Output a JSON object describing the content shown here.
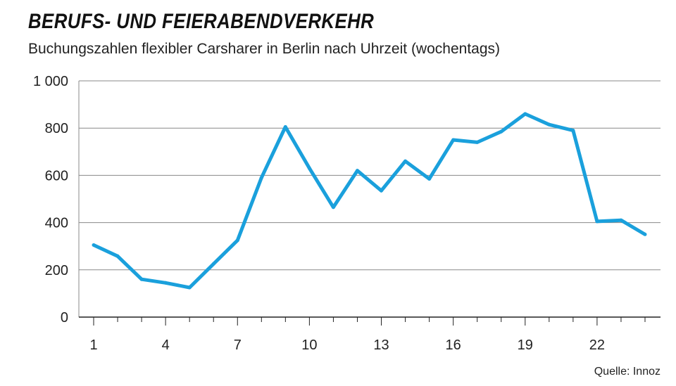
{
  "title": "BERUFS- UND FEIERABENDVERKEHR",
  "subtitle": "Buchungszahlen flexibler Carsharer in Berlin nach Uhrzeit (wochentags)",
  "source": "Quelle: Innoz",
  "colors": {
    "line": "#1aa0dc",
    "grid": "#888888",
    "axis": "#222222"
  },
  "chart_data": {
    "type": "line",
    "title": "BERUFS- UND FEIERABENDVERKEHR",
    "subtitle": "Buchungszahlen flexibler Carsharer in Berlin nach Uhrzeit (wochentags)",
    "x": [
      1,
      2,
      3,
      4,
      5,
      6,
      7,
      8,
      9,
      10,
      11,
      12,
      13,
      14,
      15,
      16,
      17,
      18,
      19,
      20,
      21,
      22,
      23,
      24
    ],
    "series": [
      {
        "values": [
          305,
          258,
          160,
          145,
          125,
          225,
          325,
          590,
          805,
          630,
          465,
          620,
          535,
          660,
          585,
          750,
          740,
          785,
          860,
          815,
          790,
          405,
          410,
          350
        ]
      }
    ],
    "xlim": [
      1,
      24
    ],
    "ylim": [
      0,
      1000
    ],
    "x_ticks": [
      1,
      4,
      7,
      10,
      13,
      16,
      19,
      22
    ],
    "x_tick_labels": [
      "1",
      "4",
      "7",
      "10",
      "13",
      "16",
      "19",
      "22"
    ],
    "y_ticks": [
      0,
      200,
      400,
      600,
      800,
      1000
    ],
    "y_tick_labels": [
      "0",
      "200",
      "400",
      "600",
      "800",
      "1 000"
    ],
    "grid": "horizontal"
  }
}
